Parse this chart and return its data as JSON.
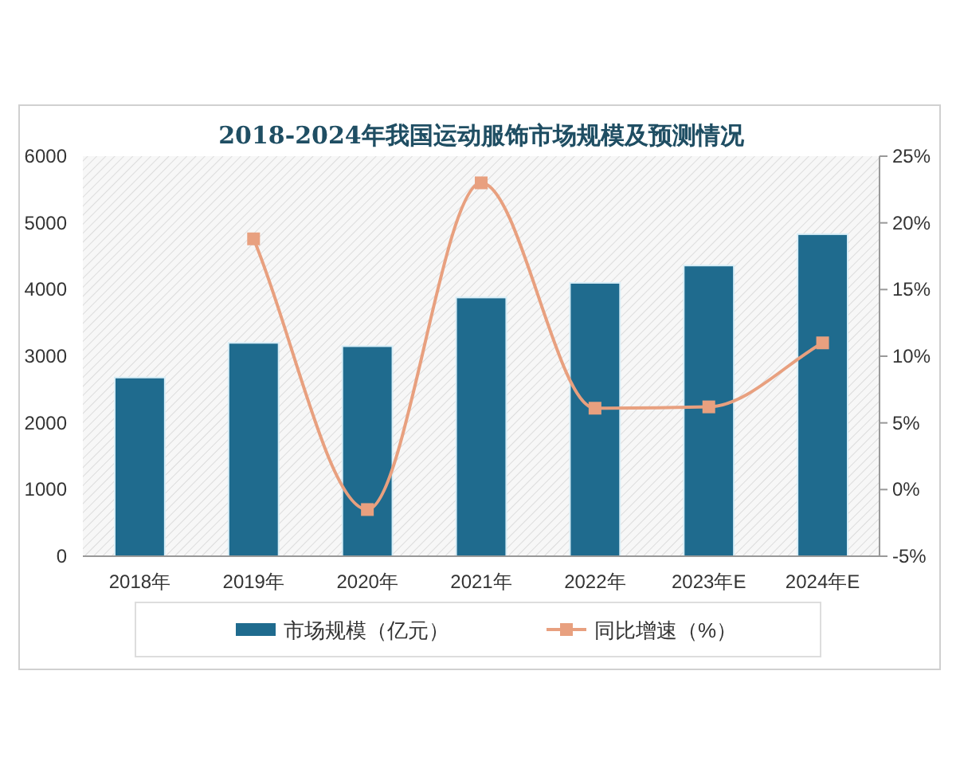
{
  "chart_data": {
    "type": "bar",
    "title": "2018-2024年我国运动服饰市场规模及预测情况",
    "categories": [
      "2018年",
      "2019年",
      "2020年",
      "2021年",
      "2022年",
      "2023年E",
      "2024年E"
    ],
    "series": [
      {
        "name": "市场规模（亿元）",
        "color": "#1f6b8e",
        "values": [
          2680,
          3200,
          3150,
          3880,
          4100,
          4360,
          4830
        ]
      },
      {
        "name": "同比增速（%）",
        "type": "line",
        "axis": "y2",
        "color": "#e8a07f",
        "marker": "square",
        "values": [
          null,
          18.8,
          -1.5,
          23.0,
          6.1,
          6.2,
          11.0
        ]
      }
    ],
    "ylim": [
      0,
      6000
    ],
    "yticks": [
      0,
      1000,
      2000,
      3000,
      4000,
      5000,
      6000
    ],
    "y2lim": [
      -5,
      25
    ],
    "y2ticks": [
      {
        "value": -5,
        "label": "-5%"
      },
      {
        "value": 0,
        "label": "0%"
      },
      {
        "value": 5,
        "label": "5%"
      },
      {
        "value": 10,
        "label": "10%"
      },
      {
        "value": 15,
        "label": "15%"
      },
      {
        "value": 20,
        "label": "20%"
      },
      {
        "value": 25,
        "label": "25%"
      }
    ],
    "legend": "bottom",
    "grid": false
  }
}
